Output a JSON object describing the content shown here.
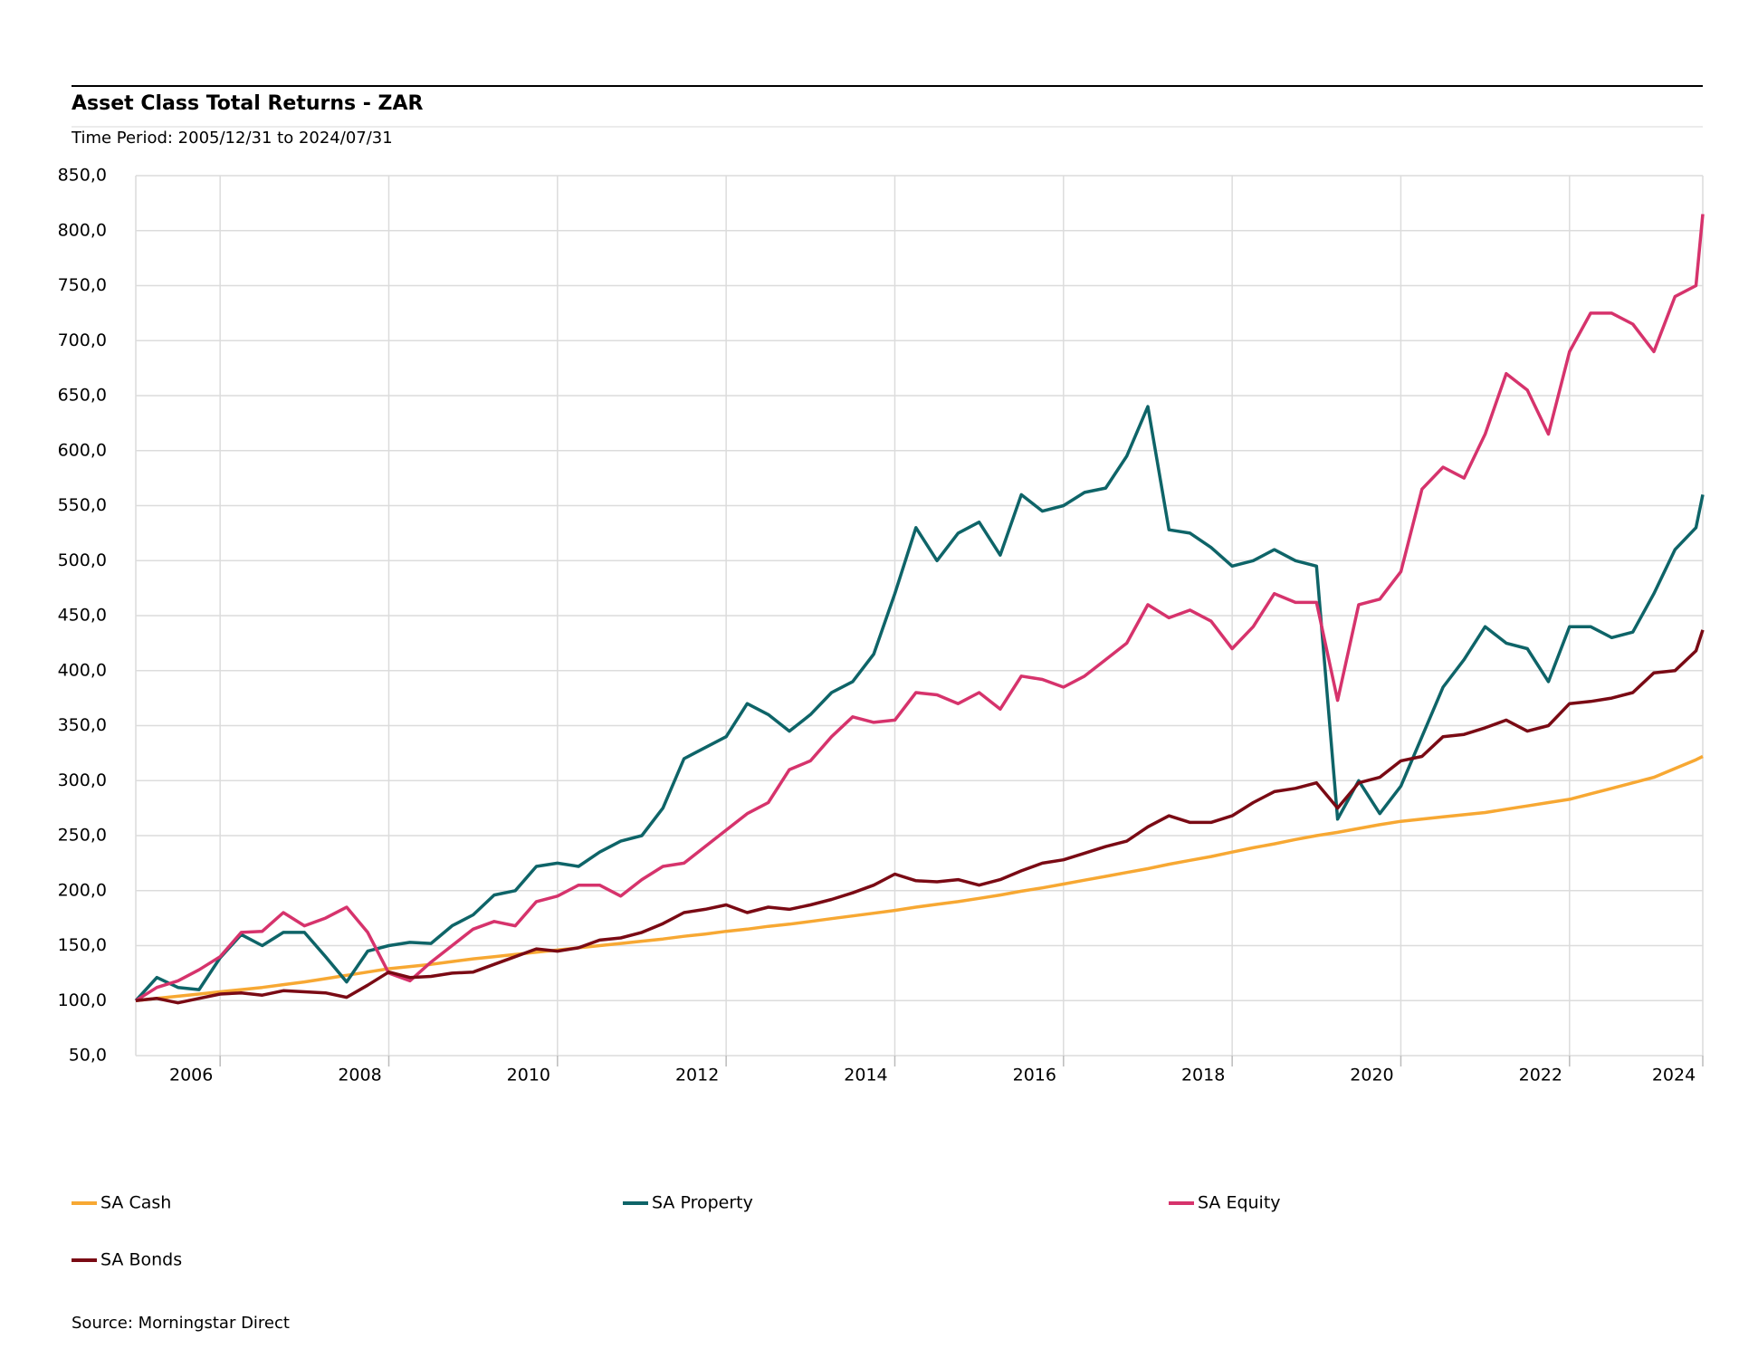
{
  "chart_data": {
    "type": "line",
    "title": "Asset Class Total Returns - ZAR",
    "subtitle": "Time Period: 2005/12/31 to 2024/07/31",
    "source": "Source: Morningstar Direct",
    "x": [
      2006,
      2006.25,
      2006.5,
      2006.75,
      2007,
      2007.25,
      2007.5,
      2007.75,
      2008,
      2008.25,
      2008.5,
      2008.75,
      2009,
      2009.25,
      2009.5,
      2009.75,
      2010,
      2010.25,
      2010.5,
      2010.75,
      2011,
      2011.25,
      2011.5,
      2011.75,
      2012,
      2012.25,
      2012.5,
      2012.75,
      2013,
      2013.25,
      2013.5,
      2013.75,
      2014,
      2014.25,
      2014.5,
      2014.75,
      2015,
      2015.25,
      2015.5,
      2015.75,
      2016,
      2016.25,
      2016.5,
      2016.75,
      2017,
      2017.25,
      2017.5,
      2017.75,
      2018,
      2018.25,
      2018.5,
      2018.75,
      2019,
      2019.25,
      2019.5,
      2019.75,
      2020,
      2020.25,
      2020.5,
      2020.75,
      2021,
      2021.25,
      2021.5,
      2021.75,
      2022,
      2022.25,
      2022.5,
      2022.75,
      2023,
      2023.25,
      2023.5,
      2023.75,
      2024,
      2024.25,
      2024.5,
      2024.58
    ],
    "series": [
      {
        "name": "SA Cash",
        "color": "#f7a833",
        "values": [
          100,
          102,
          104,
          106,
          108,
          110,
          112,
          114.5,
          117,
          120,
          123,
          126,
          129,
          131,
          133,
          135.5,
          138,
          140,
          142,
          144,
          146,
          148,
          150,
          152,
          154,
          156,
          158.5,
          160.5,
          163,
          165,
          167.5,
          169.5,
          172,
          174.5,
          177,
          179.5,
          182,
          185,
          187.5,
          190,
          193,
          196,
          199.5,
          202.5,
          206,
          209.5,
          213,
          216.5,
          220,
          224,
          227.5,
          231,
          235,
          239,
          242.5,
          246.5,
          250,
          253,
          256.5,
          260,
          263,
          265,
          267,
          269,
          271,
          274,
          277,
          280,
          283,
          288,
          293,
          298,
          303,
          311,
          319,
          322
        ]
      },
      {
        "name": "SA Property",
        "color": "#0e6468",
        "values": [
          100,
          121,
          112,
          110,
          139,
          160,
          150,
          162,
          162,
          140,
          117,
          145,
          150,
          153,
          152,
          168,
          178,
          196,
          200,
          222,
          225,
          222,
          235,
          245,
          250,
          275,
          320,
          330,
          340,
          370,
          360,
          345,
          360,
          380,
          390,
          415,
          470,
          530,
          500,
          525,
          535,
          505,
          560,
          545,
          550,
          562,
          566,
          595,
          640,
          528,
          525,
          512,
          495,
          500,
          510,
          500,
          495,
          265,
          300,
          270,
          295,
          340,
          385,
          410,
          440,
          425,
          420,
          390,
          440,
          440,
          430,
          435,
          470,
          510,
          530,
          560
        ]
      },
      {
        "name": "SA Equity",
        "color": "#d6336c",
        "values": [
          100,
          112,
          118,
          128,
          140,
          162,
          163,
          180,
          168,
          175,
          185,
          162,
          125,
          118,
          135,
          150,
          165,
          172,
          168,
          190,
          195,
          205,
          205,
          195,
          210,
          222,
          225,
          240,
          255,
          270,
          280,
          310,
          318,
          340,
          358,
          353,
          355,
          380,
          378,
          370,
          380,
          365,
          395,
          392,
          385,
          395,
          410,
          425,
          460,
          448,
          455,
          445,
          420,
          440,
          470,
          462,
          462,
          373,
          460,
          465,
          490,
          565,
          585,
          575,
          615,
          670,
          655,
          615,
          690,
          725,
          725,
          715,
          690,
          740,
          750,
          815
        ]
      },
      {
        "name": "SA Bonds",
        "color": "#7a0a14",
        "values": [
          100,
          102,
          98,
          102,
          106,
          107,
          105,
          109,
          108,
          107,
          103,
          114,
          126,
          121,
          122,
          125,
          126,
          133,
          140,
          147,
          145,
          148,
          155,
          157,
          162,
          170,
          180,
          183,
          187,
          180,
          185,
          183,
          187,
          192,
          198,
          205,
          215,
          209,
          208,
          210,
          205,
          210,
          218,
          225,
          228,
          234,
          240,
          245,
          258,
          268,
          262,
          262,
          268,
          280,
          290,
          293,
          298,
          275,
          298,
          303,
          318,
          322,
          340,
          342,
          348,
          355,
          345,
          350,
          370,
          372,
          375,
          380,
          398,
          400,
          418,
          437
        ]
      }
    ],
    "xlim": [
      2006,
      2024.58
    ],
    "xticks": [
      {
        "value": 2007,
        "label": "2006"
      },
      {
        "value": 2009,
        "label": "2008"
      },
      {
        "value": 2011,
        "label": "2010"
      },
      {
        "value": 2013,
        "label": "2012"
      },
      {
        "value": 2015,
        "label": "2014"
      },
      {
        "value": 2017,
        "label": "2016"
      },
      {
        "value": 2019,
        "label": "2018"
      },
      {
        "value": 2021,
        "label": "2020"
      },
      {
        "value": 2023,
        "label": "2022"
      },
      {
        "value": 2024.58,
        "label": "2024"
      }
    ],
    "ylim": [
      50,
      850
    ],
    "yticks": [
      {
        "value": 50,
        "label": "50,0"
      },
      {
        "value": 100,
        "label": "100,0"
      },
      {
        "value": 150,
        "label": "150,0"
      },
      {
        "value": 200,
        "label": "200,0"
      },
      {
        "value": 250,
        "label": "250,0"
      },
      {
        "value": 300,
        "label": "300,0"
      },
      {
        "value": 350,
        "label": "350,0"
      },
      {
        "value": 400,
        "label": "400,0"
      },
      {
        "value": 450,
        "label": "450,0"
      },
      {
        "value": 500,
        "label": "500,0"
      },
      {
        "value": 550,
        "label": "550,0"
      },
      {
        "value": 600,
        "label": "600,0"
      },
      {
        "value": 650,
        "label": "650,0"
      },
      {
        "value": 700,
        "label": "700,0"
      },
      {
        "value": 750,
        "label": "750,0"
      },
      {
        "value": 800,
        "label": "800,0"
      },
      {
        "value": 850,
        "label": "850,0"
      }
    ],
    "grid": true
  }
}
